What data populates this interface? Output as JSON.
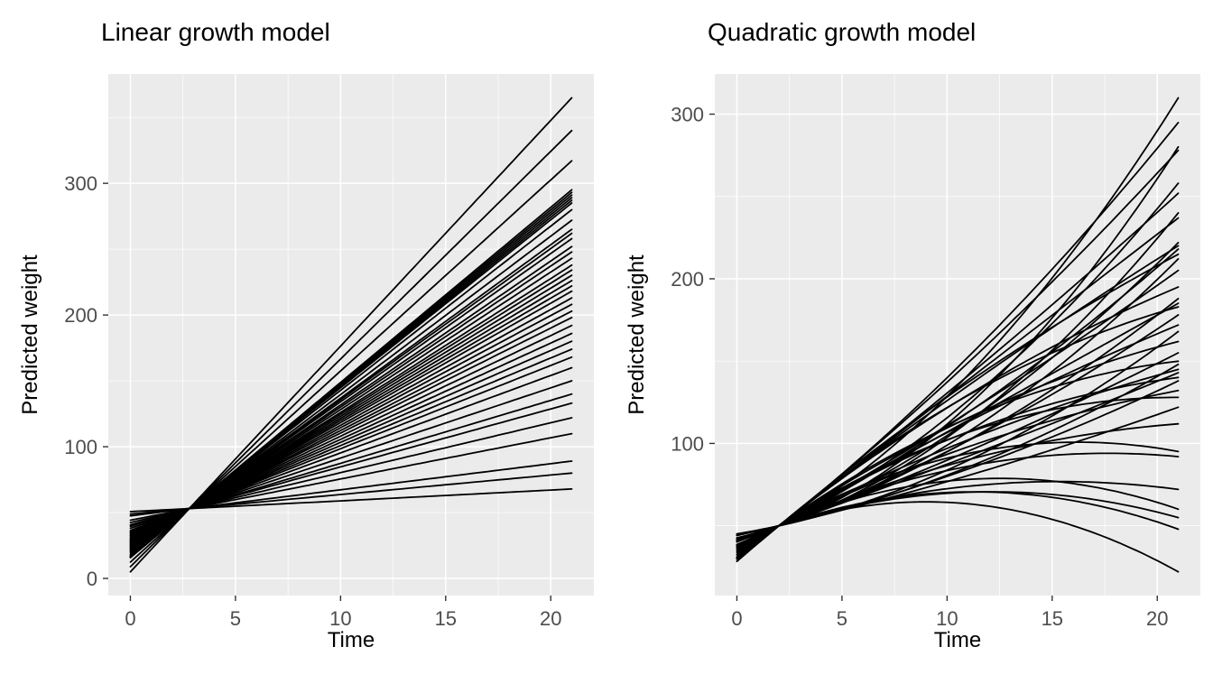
{
  "page": {
    "background": "#ffffff"
  },
  "style": {
    "panel_bg": "#EBEBEB",
    "grid_color": "#FFFFFF",
    "line_color": "#000000",
    "tick_label_color": "#4D4D4D",
    "tick_mark_color": "#333333"
  },
  "chart_data": [
    {
      "type": "line",
      "title": "Linear growth model",
      "xlabel": "Time",
      "ylabel": "Predicted weight",
      "model": "y = a + b*t (per-subject fitted trajectories)",
      "n_lines": 41,
      "x_range": [
        0,
        21
      ],
      "xlim": [
        -1.05,
        22.05
      ],
      "ylim": [
        -13,
        383
      ],
      "x_ticks": [
        0,
        5,
        10,
        15,
        20
      ],
      "y_ticks": [
        0,
        100,
        200,
        300
      ],
      "x_minor": [
        2.5,
        7.5,
        12.5,
        17.5
      ],
      "y_minor": [
        50,
        150,
        250,
        350
      ],
      "grid": true,
      "legend": "none",
      "lines": [
        [
          5.0,
          17.14,
          0
        ],
        [
          8.9,
          15.77,
          0
        ],
        [
          12.4,
          14.51,
          0
        ],
        [
          15.8,
          13.3,
          0
        ],
        [
          16.1,
          13.19,
          0
        ],
        [
          16.4,
          13.08,
          0
        ],
        [
          16.7,
          12.97,
          0
        ],
        [
          17.0,
          12.86,
          0
        ],
        [
          17.3,
          12.75,
          0
        ],
        [
          18.1,
          12.47,
          0
        ],
        [
          19.3,
          12.03,
          0
        ],
        [
          20.4,
          11.65,
          0
        ],
        [
          20.9,
          11.48,
          0
        ],
        [
          21.5,
          11.26,
          0
        ],
        [
          22.4,
          10.93,
          0
        ],
        [
          23.0,
          10.71,
          0
        ],
        [
          23.8,
          10.44,
          0
        ],
        [
          24.5,
          10.16,
          0
        ],
        [
          25.2,
          9.95,
          0
        ],
        [
          25.8,
          9.73,
          0
        ],
        [
          26.4,
          9.51,
          0
        ],
        [
          27.0,
          9.29,
          0
        ],
        [
          27.6,
          9.07,
          0
        ],
        [
          28.4,
          8.79,
          0
        ],
        [
          29.2,
          8.52,
          0
        ],
        [
          29.9,
          8.24,
          0
        ],
        [
          30.7,
          7.97,
          0
        ],
        [
          31.6,
          7.64,
          0
        ],
        [
          32.5,
          7.31,
          0
        ],
        [
          33.5,
          6.98,
          0
        ],
        [
          34.4,
          6.65,
          0
        ],
        [
          35.3,
          6.32,
          0
        ],
        [
          36.5,
          5.88,
          0
        ],
        [
          38.1,
          5.33,
          0
        ],
        [
          39.6,
          4.78,
          0
        ],
        [
          40.7,
          4.4,
          0
        ],
        [
          42.4,
          3.79,
          0
        ],
        [
          44.2,
          3.13,
          0
        ],
        [
          47.5,
          1.98,
          0
        ],
        [
          48.9,
          1.48,
          0
        ],
        [
          50.7,
          0.82,
          0
        ]
      ]
    },
    {
      "type": "line",
      "title": "Quadratic growth model",
      "xlabel": "Time",
      "ylabel": "Predicted weight",
      "model": "y = a + b*t + c*t^2 (per-subject fitted trajectories)",
      "n_lines": 40,
      "x_range": [
        0,
        21
      ],
      "xlim": [
        -1.05,
        22.05
      ],
      "ylim": [
        7.6,
        324.4
      ],
      "x_ticks": [
        0,
        5,
        10,
        15,
        20
      ],
      "y_ticks": [
        100,
        200,
        300
      ],
      "x_minor": [
        2.5,
        7.5,
        12.5,
        17.5
      ],
      "y_minor": [
        50,
        150,
        250
      ],
      "grid": true,
      "legend": "none",
      "lines": [
        [
          37.3,
          5.63,
          0.35
        ],
        [
          30.5,
          9.44,
          0.15
        ],
        [
          42.6,
          2.91,
          0.4
        ],
        [
          30.2,
          9.7,
          0.1
        ],
        [
          38.6,
          5.2,
          0.25
        ],
        [
          30.8,
          9.48,
          0.05
        ],
        [
          42.6,
          3.1,
          0.3
        ],
        [
          30.3,
          9.84,
          0.0
        ],
        [
          40.3,
          4.45,
          0.2
        ],
        [
          30.0,
          10.1,
          -0.05
        ],
        [
          37.4,
          6.08,
          0.12
        ],
        [
          28.4,
          10.98,
          -0.1
        ],
        [
          42.2,
          3.47,
          0.22
        ],
        [
          35.8,
          7.01,
          0.05
        ],
        [
          29.7,
          10.39,
          -0.12
        ],
        [
          41.8,
          3.81,
          0.15
        ],
        [
          35.8,
          7.11,
          0.0
        ],
        [
          28.4,
          11.14,
          -0.18
        ],
        [
          40.7,
          4.44,
          0.1
        ],
        [
          34.6,
          7.8,
          -0.06
        ],
        [
          45.1,
          2.07,
          0.18
        ],
        [
          32.3,
          9.11,
          -0.14
        ],
        [
          41.0,
          4.38,
          0.05
        ],
        [
          31.1,
          9.86,
          -0.2
        ],
        [
          44.7,
          2.4,
          0.12
        ],
        [
          36.6,
          6.84,
          -0.08
        ],
        [
          41.1,
          4.43,
          0.02
        ],
        [
          33.8,
          8.42,
          -0.16
        ],
        [
          44.1,
          2.79,
          0.08
        ],
        [
          37.2,
          6.62,
          -0.1
        ],
        [
          32.6,
          9.16,
          -0.22
        ],
        [
          44.1,
          2.87,
          0.04
        ],
        [
          38.4,
          6.02,
          -0.12
        ],
        [
          34.8,
          8.12,
          -0.25
        ],
        [
          38.0,
          6.35,
          -0.18
        ],
        [
          41.4,
          4.61,
          -0.15
        ],
        [
          38.0,
          6.51,
          -0.26
        ],
        [
          41.1,
          4.86,
          -0.2
        ],
        [
          40.1,
          5.41,
          -0.24
        ],
        [
          40.6,
          5.31,
          -0.295
        ]
      ]
    }
  ]
}
